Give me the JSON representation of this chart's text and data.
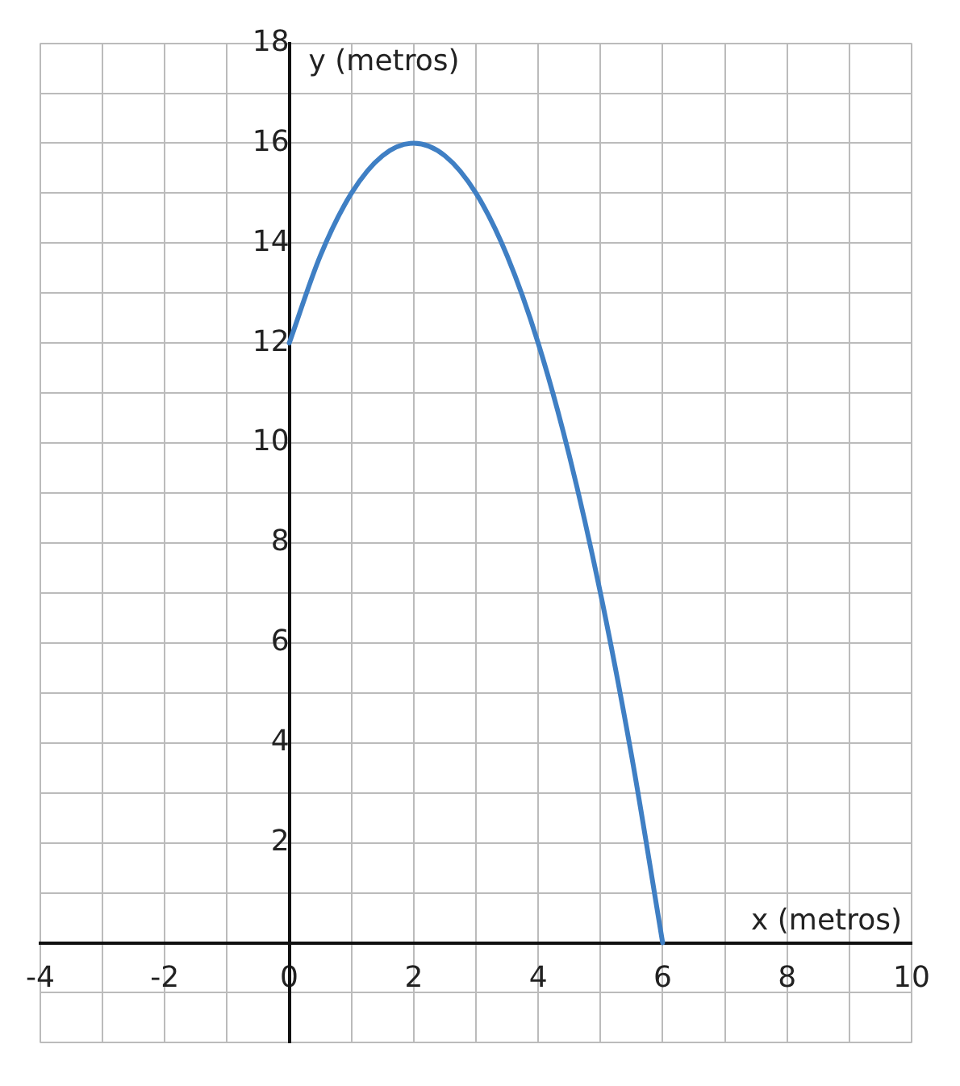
{
  "chart_data": {
    "type": "line",
    "xlabel": "x (metros)",
    "ylabel": "y (metros)",
    "x": [
      0,
      0.5,
      1,
      1.5,
      2,
      2.5,
      3,
      3.5,
      4,
      4.5,
      5,
      5.5,
      6
    ],
    "series": [
      {
        "color": "#3f7fc4",
        "values": [
          12,
          13.75,
          15,
          15.75,
          16,
          15.75,
          15,
          13.75,
          12,
          9.75,
          7,
          3.75,
          0
        ]
      }
    ],
    "xlim": [
      -4,
      10
    ],
    "ylim": [
      -2,
      18
    ],
    "xticks": [
      -4,
      {
        "value": -3,
        "label": null
      },
      -2,
      {
        "value": -1,
        "label": null
      },
      0,
      {
        "value": 1,
        "label": null
      },
      2,
      {
        "value": 3,
        "label": null
      },
      4,
      {
        "value": 5,
        "label": null
      },
      6,
      {
        "value": 7,
        "label": null
      },
      8,
      {
        "value": 9,
        "label": null
      },
      10
    ],
    "yticks": [
      {
        "value": -2,
        "label": null
      },
      {
        "value": -1,
        "label": null
      },
      {
        "value": 0,
        "label": null
      },
      {
        "value": 1,
        "label": null
      },
      2,
      {
        "value": 3,
        "label": null
      },
      4,
      {
        "value": 5,
        "label": null
      },
      6,
      {
        "value": 7,
        "label": null
      },
      8,
      {
        "value": 9,
        "label": null
      },
      10,
      {
        "value": 11,
        "label": null
      },
      12,
      {
        "value": 13,
        "label": null
      },
      14,
      {
        "value": 15,
        "label": null
      },
      16,
      {
        "value": 17,
        "label": null
      },
      18
    ],
    "grid": true,
    "legend": false,
    "marker": "none",
    "line_style": "solid"
  }
}
